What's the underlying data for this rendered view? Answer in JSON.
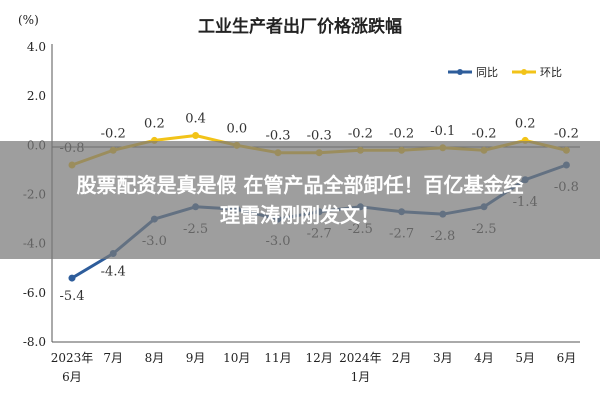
{
  "chart_data": {
    "type": "line",
    "title": "工业生产者出厂价格涨跌幅",
    "unit_label": "(%)",
    "categories": [
      [
        "2023年",
        "6月"
      ],
      [
        "7月"
      ],
      [
        "8月"
      ],
      [
        "9月"
      ],
      [
        "10月"
      ],
      [
        "11月"
      ],
      [
        "12月"
      ],
      [
        "2024年",
        "1月"
      ],
      [
        "2月"
      ],
      [
        "3月"
      ],
      [
        "4月"
      ],
      [
        "5月"
      ],
      [
        "6月"
      ]
    ],
    "ylim": [
      -8.0,
      4.0
    ],
    "yticks": [
      "4.0",
      "2.0",
      "0.0",
      "-2.0",
      "-4.0",
      "-6.0",
      "-8.0"
    ],
    "grid": false,
    "legend_position": "top-right",
    "series": [
      {
        "name": "同比",
        "color": "#2e5d9b",
        "values": [
          -5.4,
          -4.4,
          -3.0,
          -2.5,
          -2.6,
          -3.0,
          -2.7,
          -2.5,
          -2.7,
          -2.8,
          -2.5,
          -1.4,
          -0.8
        ],
        "labels": [
          "-5.4",
          "-4.4",
          "-3.0",
          "-2.5",
          "",
          "-3.0",
          "-2.7",
          "-2.5",
          "-2.7",
          "-2.8",
          "-2.5",
          "-1.4",
          "-0.8"
        ]
      },
      {
        "name": "环比",
        "color": "#f2c318",
        "values": [
          -0.8,
          -0.2,
          0.2,
          0.4,
          0.0,
          -0.3,
          -0.3,
          -0.2,
          -0.2,
          -0.1,
          -0.2,
          0.2,
          -0.2
        ],
        "labels": [
          "-0.8",
          "-0.2",
          "0.2",
          "0.4",
          "0.0",
          "-0.3",
          "-0.3",
          "-0.2",
          "-0.2",
          "-0.1",
          "-0.2",
          "0.2",
          "-0.2"
        ]
      }
    ]
  },
  "overlay": {
    "line1": "股票配资是真是假 在管产品全部卸任！百亿基金经",
    "line2": "理雷涛刚刚发文！"
  }
}
